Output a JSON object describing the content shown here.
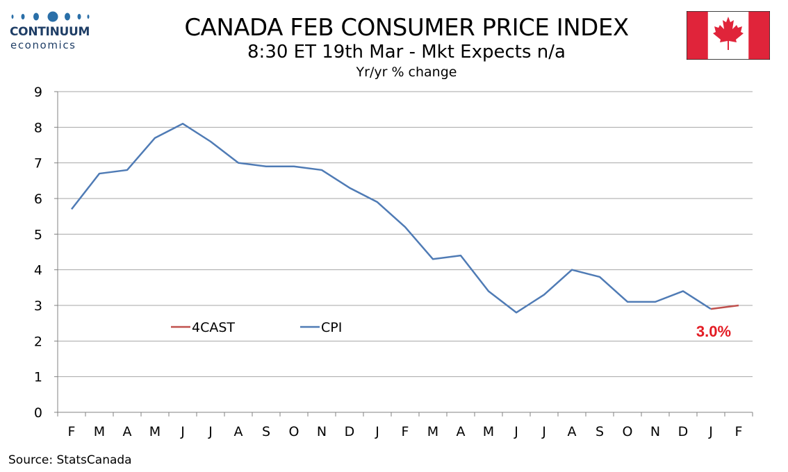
{
  "header": {
    "title": "CANADA FEB CONSUMER PRICE INDEX",
    "subtitle": "8:30 ET 19th Mar - Mkt Expects n/a",
    "subtitle2": "Yr/yr % change"
  },
  "logo": {
    "name": "CONTINUUM",
    "sub": "economics"
  },
  "flag": {
    "icon": "canada-flag-icon",
    "red": "#e0243a"
  },
  "source": "Source: StatsCanada",
  "colors": {
    "cpi": "#4f7bb5",
    "forecast": "#c0504d",
    "callout": "#e31b23",
    "grid": "#a6a6a6"
  },
  "chart_data": {
    "type": "line",
    "title": "CANADA FEB CONSUMER PRICE INDEX",
    "ylim": [
      0,
      9
    ],
    "yticks": [
      0,
      1,
      2,
      3,
      4,
      5,
      6,
      7,
      8,
      9
    ],
    "grid": true,
    "legend": "middle-left",
    "categories": [
      "F",
      "M",
      "A",
      "M",
      "J",
      "J",
      "A",
      "S",
      "O",
      "N",
      "D",
      "J",
      "F",
      "M",
      "A",
      "M",
      "J",
      "J",
      "A",
      "S",
      "O",
      "N",
      "D",
      "J",
      "F"
    ],
    "series": [
      {
        "name": "4CAST",
        "values": [
          null,
          null,
          null,
          null,
          null,
          null,
          null,
          null,
          null,
          null,
          null,
          null,
          null,
          null,
          null,
          null,
          null,
          null,
          null,
          null,
          null,
          null,
          null,
          2.9,
          3.0
        ]
      },
      {
        "name": "CPI",
        "values": [
          5.7,
          6.7,
          6.8,
          7.7,
          8.1,
          7.6,
          7.0,
          6.9,
          6.9,
          6.8,
          6.3,
          5.9,
          5.2,
          4.3,
          4.4,
          3.4,
          2.8,
          3.3,
          4.0,
          3.8,
          3.1,
          3.1,
          3.4,
          2.9,
          null
        ]
      }
    ],
    "annotation": "3.0%"
  }
}
